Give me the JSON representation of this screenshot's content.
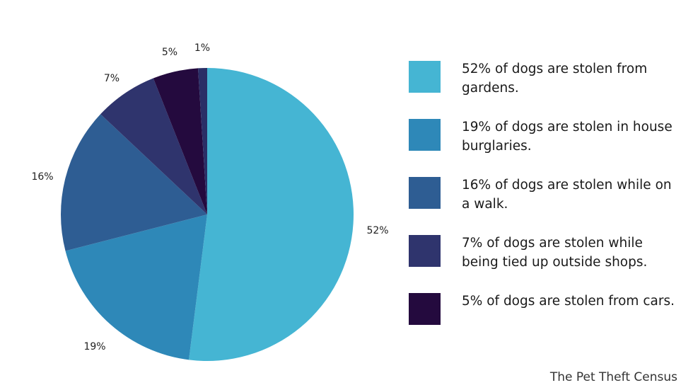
{
  "chart_data": {
    "type": "pie",
    "slices": [
      {
        "label": "52%",
        "value": 52,
        "color": "#45b5d3"
      },
      {
        "label": "19%",
        "value": 19,
        "color": "#2e88b8"
      },
      {
        "label": "16%",
        "value": 16,
        "color": "#2e5d93"
      },
      {
        "label": "7%",
        "value": 7,
        "color": "#2f346d"
      },
      {
        "label": "5%",
        "value": 5,
        "color": "#240a3e"
      },
      {
        "label": "1%",
        "value": 1,
        "color": "#2a2f66"
      }
    ],
    "start_angle_deg": 0,
    "direction": "clockwise",
    "legend_position": "right"
  },
  "legend": {
    "items": [
      {
        "text": "52% of dogs are stolen from gardens.",
        "color": "#45b5d3"
      },
      {
        "text": "19% of dogs are stolen in house burglaries.",
        "color": "#2e88b8"
      },
      {
        "text": "16% of dogs are stolen while on a walk.",
        "color": "#2e5d93"
      },
      {
        "text": "7% of dogs are stolen while being tied up outside shops.",
        "color": "#2f346d"
      },
      {
        "text": "5% of dogs are stolen from cars.",
        "color": "#240a3e"
      }
    ]
  },
  "source": "The Pet Theft Census"
}
